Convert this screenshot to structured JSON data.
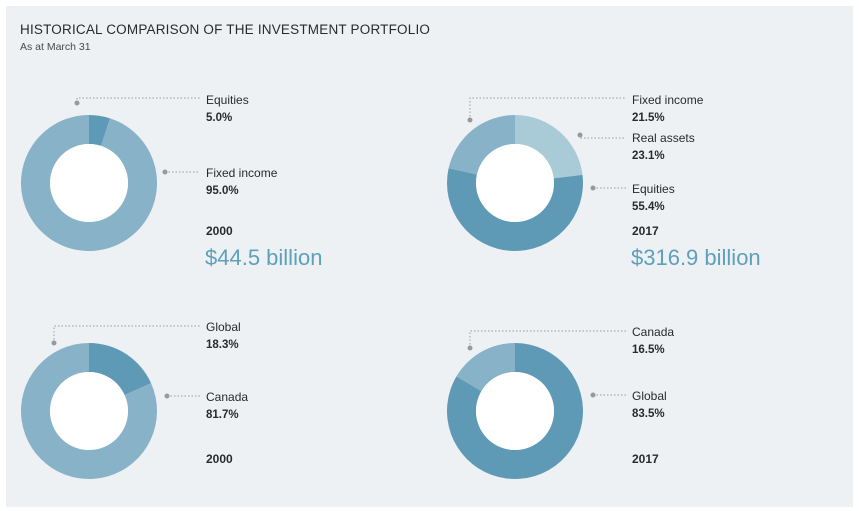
{
  "title": "HISTORICAL COMPARISON OF THE INVESTMENT PORTFOLIO",
  "subtitle": "As at March 31",
  "colors": {
    "light": "#a9cbd8",
    "medium": "#88b2c7",
    "dark": "#5e9ab6",
    "accent_text": "#5e9fba",
    "leader": "#999999"
  },
  "chart_data": [
    {
      "type": "pie",
      "year": "2000",
      "total": "$44.5 billion",
      "slices": [
        {
          "label": "Equities",
          "value": 5.0,
          "display": "5.0%",
          "color": "dark"
        },
        {
          "label": "Fixed income",
          "value": 95.0,
          "display": "95.0%",
          "color": "medium"
        }
      ]
    },
    {
      "type": "pie",
      "year": "2017",
      "total": "$316.9 billion",
      "slices": [
        {
          "label": "Real assets",
          "value": 23.1,
          "display": "23.1%",
          "color": "light"
        },
        {
          "label": "Equities",
          "value": 55.4,
          "display": "55.4%",
          "color": "dark"
        },
        {
          "label": "Fixed income",
          "value": 21.5,
          "display": "21.5%",
          "color": "medium"
        }
      ]
    },
    {
      "type": "pie",
      "year": "2000",
      "slices": [
        {
          "label": "Canada",
          "value": 81.7,
          "display": "81.7%",
          "color": "medium"
        },
        {
          "label": "Global",
          "value": 18.3,
          "display": "18.3%",
          "color": "dark"
        }
      ]
    },
    {
      "type": "pie",
      "year": "2017",
      "slices": [
        {
          "label": "Global",
          "value": 83.5,
          "display": "83.5%",
          "color": "dark"
        },
        {
          "label": "Canada",
          "value": 16.5,
          "display": "16.5%",
          "color": "medium"
        }
      ]
    }
  ]
}
